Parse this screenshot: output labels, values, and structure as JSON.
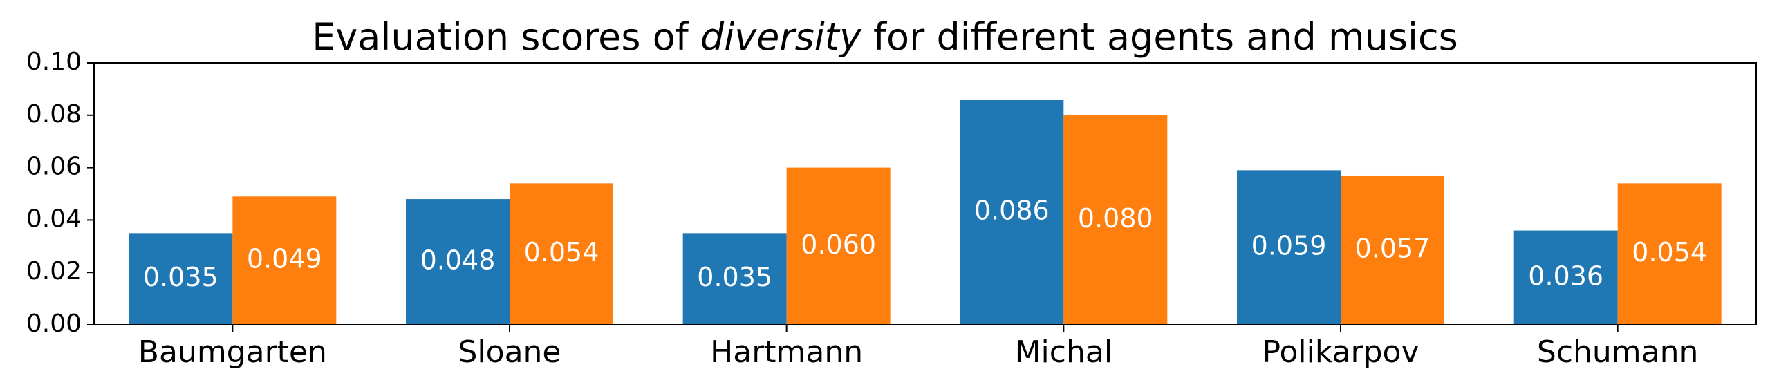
{
  "chart_data": {
    "type": "bar",
    "title_parts": [
      "Evaluation scores of ",
      "diversity",
      " for different agents and musics"
    ],
    "xlabel": "",
    "ylabel": "",
    "categories": [
      "Baumgarten",
      "Sloane",
      "Hartmann",
      "Michal",
      "Polikarpov",
      "Schumann"
    ],
    "series": [
      {
        "color": "#1f77b4",
        "values": [
          0.035,
          0.048,
          0.035,
          0.086,
          0.059,
          0.036
        ]
      },
      {
        "color": "#ff7f0e",
        "values": [
          0.049,
          0.054,
          0.06,
          0.08,
          0.057,
          0.054
        ]
      }
    ],
    "ylim": [
      0,
      0.1
    ],
    "yticks": [
      0.0,
      0.02,
      0.04,
      0.06,
      0.08,
      0.1
    ],
    "ytick_labels": [
      "0.00",
      "0.02",
      "0.04",
      "0.06",
      "0.08",
      "0.10"
    ],
    "value_labels": true,
    "value_format_decimals": 3,
    "grid": false,
    "legend": "none"
  }
}
